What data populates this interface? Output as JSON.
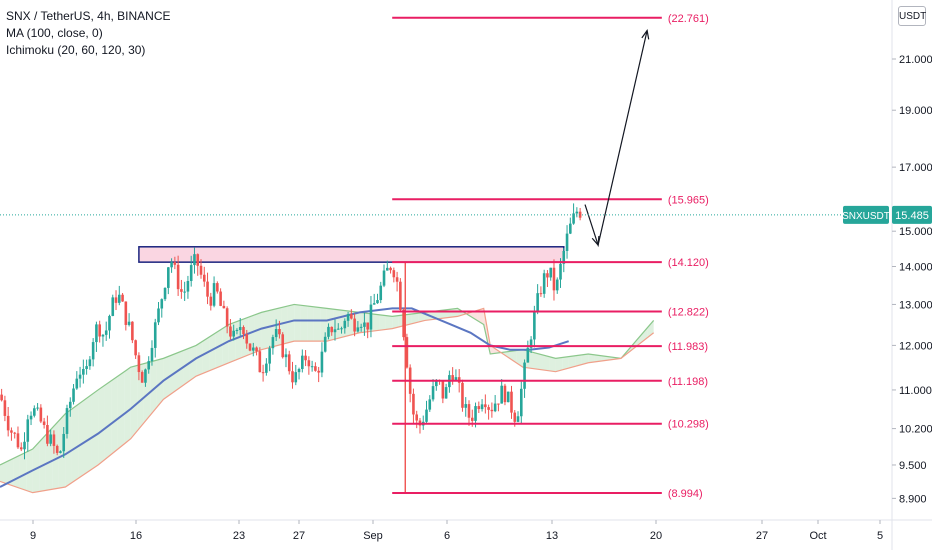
{
  "legend": {
    "symbol": "SNX / TetherUS, 4h, BINANCE",
    "ma": "MA (100, close, 0)",
    "ichimoku": "Ichimoku (20, 60, 120, 30)"
  },
  "currency_label": "USDT",
  "price_tag": {
    "symbol": "SNXUSDT",
    "value": "15.485"
  },
  "colors": {
    "up": "#26a69a",
    "down": "#ef5350",
    "level": "#e91e63",
    "ma": "#5b76c2",
    "span_a": "#8bc78b",
    "span_b": "#f0a08a",
    "zone_border": "#1a237e",
    "zone_fill": "#f8c8d8",
    "price_tag": "#26a69a"
  },
  "chart_data": {
    "type": "candlestick",
    "x_ticks": [
      "9",
      "16",
      "23",
      "27",
      "Sep",
      "6",
      "13",
      "20",
      "27",
      "Oct",
      "5"
    ],
    "y_ticks": [
      "21.000",
      "19.000",
      "17.000",
      "15.000",
      "14.000",
      "13.000",
      "12.000",
      "11.000",
      "10.200",
      "9.500",
      "8.900"
    ],
    "y_range": [
      8.7,
      23.2
    ],
    "y_scale": "log",
    "current_price": 15.485,
    "levels": [
      {
        "value": 22.761,
        "label": "(22.761)"
      },
      {
        "value": 15.965,
        "label": "(15.965)"
      },
      {
        "value": 14.12,
        "label": "(14.120)"
      },
      {
        "value": 12.822,
        "label": "(12.822)"
      },
      {
        "value": 11.983,
        "label": "(11.983)"
      },
      {
        "value": 11.198,
        "label": "(11.198)"
      },
      {
        "value": 10.298,
        "label": "(10.298)"
      },
      {
        "value": 8.994,
        "label": "(8.994)"
      }
    ],
    "zone": {
      "low": 14.12,
      "high": 14.55
    },
    "price_path": [
      [
        0,
        10.9
      ],
      [
        6,
        10.2
      ],
      [
        10,
        10.0
      ],
      [
        14,
        9.7
      ],
      [
        16,
        10.5
      ],
      [
        20,
        10.6
      ],
      [
        24,
        10.4
      ],
      [
        28,
        10.1
      ],
      [
        32,
        9.9
      ],
      [
        36,
        9.6
      ],
      [
        40,
        10.3
      ],
      [
        44,
        10.9
      ],
      [
        48,
        11.5
      ],
      [
        52,
        11.2
      ],
      [
        56,
        12.1
      ],
      [
        60,
        12.5
      ],
      [
        64,
        12.2
      ],
      [
        68,
        12.9
      ],
      [
        72,
        13.3
      ],
      [
        76,
        12.8
      ],
      [
        80,
        12.3
      ],
      [
        84,
        11.6
      ],
      [
        88,
        11.2
      ],
      [
        92,
        12.0
      ],
      [
        96,
        12.6
      ],
      [
        100,
        13.4
      ],
      [
        104,
        14.3
      ],
      [
        108,
        13.7
      ],
      [
        112,
        13.2
      ],
      [
        116,
        13.8
      ],
      [
        120,
        14.2
      ],
      [
        124,
        13.6
      ],
      [
        128,
        13.1
      ],
      [
        132,
        13.4
      ],
      [
        136,
        12.8
      ],
      [
        140,
        12.4
      ],
      [
        144,
        12.1
      ],
      [
        148,
        12.6
      ],
      [
        152,
        12.0
      ],
      [
        156,
        11.8
      ],
      [
        160,
        11.4
      ],
      [
        164,
        11.9
      ],
      [
        168,
        12.3
      ],
      [
        172,
        12.0
      ],
      [
        176,
        11.6
      ],
      [
        180,
        11.2
      ],
      [
        184,
        11.5
      ],
      [
        188,
        11.8
      ],
      [
        192,
        11.3
      ],
      [
        196,
        11.6
      ],
      [
        200,
        12.2
      ],
      [
        204,
        12.5
      ],
      [
        208,
        12.3
      ],
      [
        212,
        12.8
      ],
      [
        216,
        12.5
      ],
      [
        220,
        12.7
      ],
      [
        224,
        12.4
      ],
      [
        228,
        12.9
      ],
      [
        232,
        13.3
      ],
      [
        236,
        13.8
      ],
      [
        240,
        14.1
      ],
      [
        244,
        13.4
      ],
      [
        248,
        12.0
      ],
      [
        252,
        10.6
      ],
      [
        256,
        10.2
      ],
      [
        260,
        10.5
      ],
      [
        264,
        10.9
      ],
      [
        268,
        11.2
      ],
      [
        272,
        10.8
      ],
      [
        276,
        11.5
      ],
      [
        280,
        11.1
      ],
      [
        284,
        10.6
      ],
      [
        288,
        10.4
      ],
      [
        292,
        10.7
      ],
      [
        296,
        10.9
      ],
      [
        300,
        10.6
      ],
      [
        304,
        10.8
      ],
      [
        308,
        11.0
      ],
      [
        312,
        10.7
      ],
      [
        316,
        10.4
      ],
      [
        320,
        11.2
      ],
      [
        324,
        12.1
      ],
      [
        328,
        12.9
      ],
      [
        332,
        13.6
      ],
      [
        336,
        13.9
      ],
      [
        340,
        13.3
      ],
      [
        344,
        14.2
      ],
      [
        348,
        15.0
      ],
      [
        352,
        15.5
      ],
      [
        354,
        15.7
      ],
      [
        356,
        15.485
      ]
    ],
    "ma100": [
      [
        0,
        9.1
      ],
      [
        20,
        9.4
      ],
      [
        40,
        9.7
      ],
      [
        60,
        10.1
      ],
      [
        80,
        10.6
      ],
      [
        100,
        11.2
      ],
      [
        120,
        11.7
      ],
      [
        140,
        12.1
      ],
      [
        160,
        12.4
      ],
      [
        180,
        12.6
      ],
      [
        200,
        12.6
      ],
      [
        220,
        12.8
      ],
      [
        240,
        12.9
      ],
      [
        252,
        12.9
      ],
      [
        264,
        12.7
      ],
      [
        276,
        12.5
      ],
      [
        288,
        12.3
      ],
      [
        300,
        12.0
      ],
      [
        312,
        11.9
      ],
      [
        324,
        11.9
      ],
      [
        336,
        11.95
      ],
      [
        348,
        12.1
      ]
    ],
    "ichimoku_span_a": [
      [
        0,
        9.5
      ],
      [
        20,
        9.8
      ],
      [
        40,
        10.5
      ],
      [
        60,
        11.0
      ],
      [
        80,
        11.5
      ],
      [
        100,
        11.7
      ],
      [
        120,
        12.0
      ],
      [
        140,
        12.5
      ],
      [
        160,
        12.8
      ],
      [
        180,
        13.0
      ],
      [
        200,
        12.9
      ],
      [
        220,
        12.8
      ],
      [
        240,
        12.7
      ],
      [
        260,
        12.8
      ],
      [
        280,
        12.9
      ],
      [
        296,
        12.5
      ],
      [
        300,
        11.8
      ],
      [
        320,
        11.9
      ],
      [
        340,
        11.7
      ],
      [
        360,
        11.8
      ],
      [
        380,
        11.7
      ],
      [
        400,
        12.6
      ]
    ],
    "ichimoku_span_b": [
      [
        0,
        9.2
      ],
      [
        20,
        9.0
      ],
      [
        40,
        9.1
      ],
      [
        60,
        9.5
      ],
      [
        80,
        10.0
      ],
      [
        100,
        10.8
      ],
      [
        120,
        11.3
      ],
      [
        140,
        11.6
      ],
      [
        160,
        11.9
      ],
      [
        180,
        12.1
      ],
      [
        200,
        12.1
      ],
      [
        220,
        12.3
      ],
      [
        240,
        12.4
      ],
      [
        260,
        12.6
      ],
      [
        280,
        12.7
      ],
      [
        296,
        12.9
      ],
      [
        300,
        12.0
      ],
      [
        320,
        11.5
      ],
      [
        340,
        11.4
      ],
      [
        360,
        11.6
      ],
      [
        380,
        11.7
      ],
      [
        400,
        12.3
      ]
    ]
  }
}
